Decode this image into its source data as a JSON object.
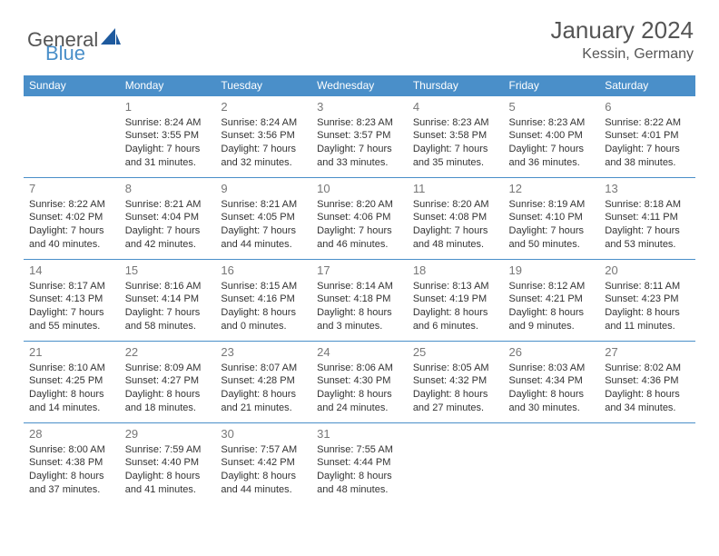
{
  "logo": {
    "part1": "General",
    "part2": "Blue"
  },
  "title": "January 2024",
  "location": "Kessin, Germany",
  "weekdays": [
    "Sunday",
    "Monday",
    "Tuesday",
    "Wednesday",
    "Thursday",
    "Friday",
    "Saturday"
  ],
  "colors": {
    "header_bg": "#4a8fc9",
    "header_text": "#ffffff",
    "border": "#4a8fc9",
    "text": "#333333",
    "daynum": "#777777",
    "logo_gray": "#555555",
    "logo_blue": "#4a8fc9"
  },
  "layout": {
    "first_weekday_index": 1,
    "days_in_month": 31
  },
  "days": [
    {
      "n": 1,
      "sr": "8:24 AM",
      "ss": "3:55 PM",
      "dl": "7 hours and 31 minutes."
    },
    {
      "n": 2,
      "sr": "8:24 AM",
      "ss": "3:56 PM",
      "dl": "7 hours and 32 minutes."
    },
    {
      "n": 3,
      "sr": "8:23 AM",
      "ss": "3:57 PM",
      "dl": "7 hours and 33 minutes."
    },
    {
      "n": 4,
      "sr": "8:23 AM",
      "ss": "3:58 PM",
      "dl": "7 hours and 35 minutes."
    },
    {
      "n": 5,
      "sr": "8:23 AM",
      "ss": "4:00 PM",
      "dl": "7 hours and 36 minutes."
    },
    {
      "n": 6,
      "sr": "8:22 AM",
      "ss": "4:01 PM",
      "dl": "7 hours and 38 minutes."
    },
    {
      "n": 7,
      "sr": "8:22 AM",
      "ss": "4:02 PM",
      "dl": "7 hours and 40 minutes."
    },
    {
      "n": 8,
      "sr": "8:21 AM",
      "ss": "4:04 PM",
      "dl": "7 hours and 42 minutes."
    },
    {
      "n": 9,
      "sr": "8:21 AM",
      "ss": "4:05 PM",
      "dl": "7 hours and 44 minutes."
    },
    {
      "n": 10,
      "sr": "8:20 AM",
      "ss": "4:06 PM",
      "dl": "7 hours and 46 minutes."
    },
    {
      "n": 11,
      "sr": "8:20 AM",
      "ss": "4:08 PM",
      "dl": "7 hours and 48 minutes."
    },
    {
      "n": 12,
      "sr": "8:19 AM",
      "ss": "4:10 PM",
      "dl": "7 hours and 50 minutes."
    },
    {
      "n": 13,
      "sr": "8:18 AM",
      "ss": "4:11 PM",
      "dl": "7 hours and 53 minutes."
    },
    {
      "n": 14,
      "sr": "8:17 AM",
      "ss": "4:13 PM",
      "dl": "7 hours and 55 minutes."
    },
    {
      "n": 15,
      "sr": "8:16 AM",
      "ss": "4:14 PM",
      "dl": "7 hours and 58 minutes."
    },
    {
      "n": 16,
      "sr": "8:15 AM",
      "ss": "4:16 PM",
      "dl": "8 hours and 0 minutes."
    },
    {
      "n": 17,
      "sr": "8:14 AM",
      "ss": "4:18 PM",
      "dl": "8 hours and 3 minutes."
    },
    {
      "n": 18,
      "sr": "8:13 AM",
      "ss": "4:19 PM",
      "dl": "8 hours and 6 minutes."
    },
    {
      "n": 19,
      "sr": "8:12 AM",
      "ss": "4:21 PM",
      "dl": "8 hours and 9 minutes."
    },
    {
      "n": 20,
      "sr": "8:11 AM",
      "ss": "4:23 PM",
      "dl": "8 hours and 11 minutes."
    },
    {
      "n": 21,
      "sr": "8:10 AM",
      "ss": "4:25 PM",
      "dl": "8 hours and 14 minutes."
    },
    {
      "n": 22,
      "sr": "8:09 AM",
      "ss": "4:27 PM",
      "dl": "8 hours and 18 minutes."
    },
    {
      "n": 23,
      "sr": "8:07 AM",
      "ss": "4:28 PM",
      "dl": "8 hours and 21 minutes."
    },
    {
      "n": 24,
      "sr": "8:06 AM",
      "ss": "4:30 PM",
      "dl": "8 hours and 24 minutes."
    },
    {
      "n": 25,
      "sr": "8:05 AM",
      "ss": "4:32 PM",
      "dl": "8 hours and 27 minutes."
    },
    {
      "n": 26,
      "sr": "8:03 AM",
      "ss": "4:34 PM",
      "dl": "8 hours and 30 minutes."
    },
    {
      "n": 27,
      "sr": "8:02 AM",
      "ss": "4:36 PM",
      "dl": "8 hours and 34 minutes."
    },
    {
      "n": 28,
      "sr": "8:00 AM",
      "ss": "4:38 PM",
      "dl": "8 hours and 37 minutes."
    },
    {
      "n": 29,
      "sr": "7:59 AM",
      "ss": "4:40 PM",
      "dl": "8 hours and 41 minutes."
    },
    {
      "n": 30,
      "sr": "7:57 AM",
      "ss": "4:42 PM",
      "dl": "8 hours and 44 minutes."
    },
    {
      "n": 31,
      "sr": "7:55 AM",
      "ss": "4:44 PM",
      "dl": "8 hours and 48 minutes."
    }
  ],
  "labels": {
    "sunrise": "Sunrise:",
    "sunset": "Sunset:",
    "daylight": "Daylight:"
  }
}
